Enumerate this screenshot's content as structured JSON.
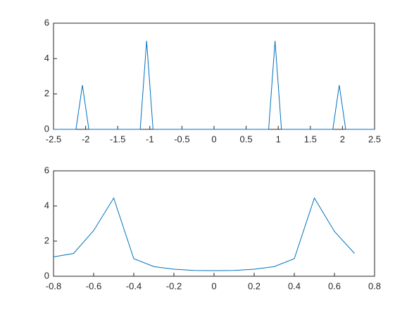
{
  "chart_data": [
    {
      "type": "line",
      "x": [
        -2.5,
        -2.15,
        -2.05,
        -1.95,
        -1.15,
        -1.05,
        -0.95,
        0.85,
        0.95,
        1.05,
        1.85,
        1.95,
        2.05,
        2.5
      ],
      "values": [
        0,
        0,
        2.5,
        0,
        0,
        5,
        0,
        0,
        5,
        0,
        0,
        2.5,
        0,
        0
      ],
      "color": "#0072bd",
      "xlim": [
        -2.5,
        2.5
      ],
      "xticks": [
        -2.5,
        -2,
        -1.5,
        -1,
        -0.5,
        0,
        0.5,
        1,
        1.5,
        2,
        2.5
      ],
      "ylim": [
        0,
        6
      ],
      "yticks": [
        0,
        2,
        4,
        6
      ]
    },
    {
      "type": "line",
      "x": [
        -0.8,
        -0.7,
        -0.6,
        -0.5,
        -0.4,
        -0.3,
        -0.2,
        -0.1,
        0,
        0.1,
        0.2,
        0.3,
        0.4,
        0.5,
        0.6,
        0.7
      ],
      "values": [
        1.1,
        1.3,
        2.6,
        4.45,
        1.0,
        0.55,
        0.4,
        0.33,
        0.32,
        0.33,
        0.4,
        0.55,
        1.0,
        4.45,
        2.55,
        1.3
      ],
      "color": "#0072bd",
      "xlim": [
        -0.8,
        0.8
      ],
      "xticks": [
        -0.8,
        -0.6,
        -0.4,
        -0.2,
        0,
        0.2,
        0.4,
        0.6,
        0.8
      ],
      "ylim": [
        0,
        6
      ],
      "yticks": [
        0,
        2,
        4,
        6
      ]
    }
  ]
}
